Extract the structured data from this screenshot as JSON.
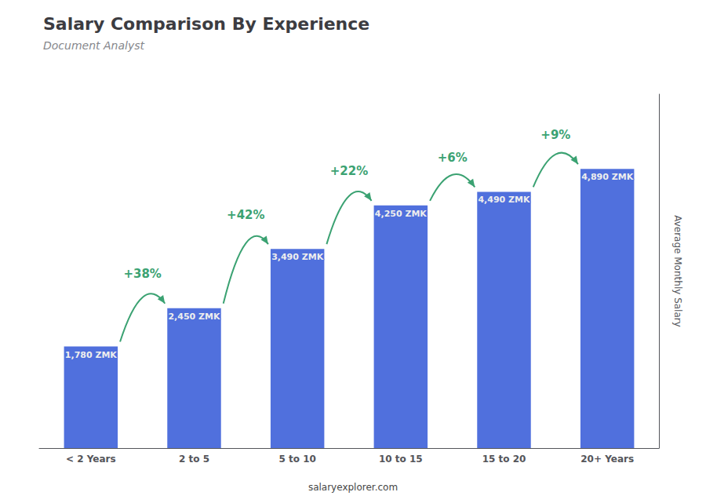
{
  "chart_data": {
    "type": "bar",
    "title": "Salary Comparison By Experience",
    "subtitle": "Document Analyst",
    "categories": [
      "< 2 Years",
      "2 to 5",
      "5 to 10",
      "10 to 15",
      "15 to 20",
      "20+ Years"
    ],
    "values": [
      1780,
      2450,
      3490,
      4250,
      4490,
      4890
    ],
    "value_labels": [
      "1,780 ZMK",
      "2,450 ZMK",
      "3,490 ZMK",
      "4,250 ZMK",
      "4,490 ZMK",
      "4,890 ZMK"
    ],
    "data_labels": true,
    "ylabel": "Average Monthly Salary",
    "ylim": [
      0,
      6200
    ],
    "yticks": [],
    "tick_labels": "x",
    "grid": false,
    "annotations": [
      "+38%",
      "+42%",
      "+22%",
      "+6%",
      "+9%"
    ],
    "footer": "salaryexplorer.com"
  }
}
